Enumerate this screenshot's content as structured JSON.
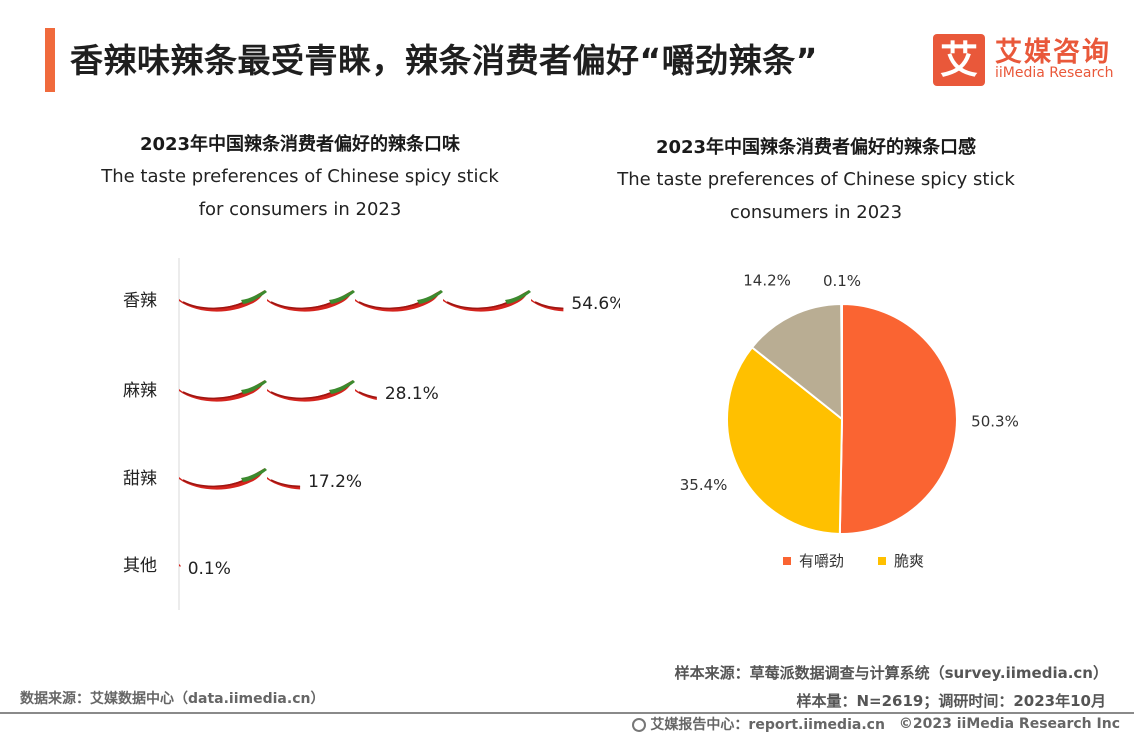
{
  "header": {
    "title": "香辣味辣条最受青睐，辣条消费者偏好“嚼劲辣条”",
    "brand_char": "艾",
    "brand_cn": "艾媒咨询",
    "brand_en": "iiMedia Research"
  },
  "colors": {
    "accent": "#f06a3c",
    "chili_red": "#d4241e",
    "chili_dark": "#9e1511",
    "stem_green": "#3c8a2e",
    "pie_orange": "#fa6432",
    "pie_yellow": "#ffc000",
    "pie_beige": "#b9ad93",
    "pie_gray": "#cfcfcf"
  },
  "chart_data": [
    {
      "type": "bar",
      "title": "2023年中国辣条消费者偏好的辣条口味",
      "subtitle_lines": [
        "The taste preferences of Chinese spicy stick",
        "for consumers in 2023"
      ],
      "categories": [
        "香辣",
        "麻辣",
        "甜辣",
        "其他"
      ],
      "values": [
        54.6,
        28.1,
        17.2,
        0.1
      ],
      "value_labels": [
        "54.6%",
        "28.1%",
        "17.2%",
        "0.1%"
      ],
      "units_per_icon": 12.5,
      "icon": "chili-pepper-icon",
      "xlabel": "",
      "ylabel": ""
    },
    {
      "type": "pie",
      "title": "2023年中国辣条消费者偏好的辣条口感",
      "subtitle_lines": [
        "The taste preferences of Chinese spicy stick",
        "consumers in 2023"
      ],
      "categories": [
        "有嚼劲",
        "脆爽",
        "",
        ""
      ],
      "values": [
        50.3,
        35.4,
        14.2,
        0.1
      ],
      "value_labels": [
        "50.3%",
        "35.4%",
        "14.2%",
        "0.1%"
      ],
      "legend": [
        "有嚼劲",
        "脆爽"
      ],
      "legend_position": "bottom"
    }
  ],
  "footer": {
    "data_source": "数据来源：艾媒数据中心（data.iimedia.cn）",
    "sample_source": "样本来源：草莓派数据调查与计算系统（survey.iimedia.cn）",
    "sample_size": "样本量：N=2619；调研时间：2023年10月",
    "report_center": "艾媒报告中心：report.iimedia.cn",
    "copyright": "©2023  iiMedia Research  Inc"
  }
}
